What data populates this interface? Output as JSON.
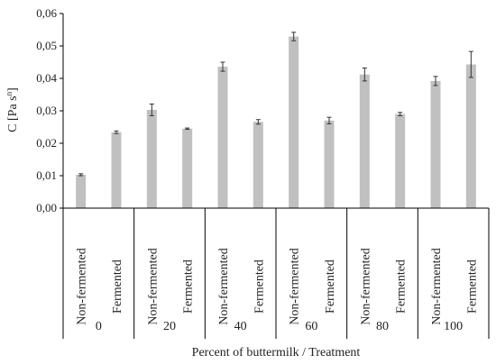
{
  "chart_data": {
    "type": "bar",
    "title": "",
    "ylabel_main": "C [Pa s",
    "ylabel_sup": "n",
    "ylabel_end": "]",
    "xlabel": "Percent of buttermilk / Treatment",
    "ylim": [
      0,
      0.06
    ],
    "yticks": [
      "0,00",
      "0,01",
      "0,02",
      "0,03",
      "0,04",
      "0,05",
      "0,06"
    ],
    "grid": false,
    "bar_color": "#c0c0c0",
    "groups": [
      {
        "label": "0",
        "bars": [
          {
            "treatment": "Non-fermented",
            "value": 0.0103,
            "err": 0.0003
          },
          {
            "treatment": "Fermented",
            "value": 0.0234,
            "err": 0.0004
          }
        ]
      },
      {
        "label": "20",
        "bars": [
          {
            "treatment": "Non-fermented",
            "value": 0.0303,
            "err": 0.0018
          },
          {
            "treatment": "Fermented",
            "value": 0.0245,
            "err": 0.0002
          }
        ]
      },
      {
        "label": "40",
        "bars": [
          {
            "treatment": "Non-fermented",
            "value": 0.0436,
            "err": 0.0014
          },
          {
            "treatment": "Fermented",
            "value": 0.0266,
            "err": 0.0007
          }
        ]
      },
      {
        "label": "60",
        "bars": [
          {
            "treatment": "Non-fermented",
            "value": 0.0529,
            "err": 0.0013
          },
          {
            "treatment": "Fermented",
            "value": 0.027,
            "err": 0.001
          }
        ]
      },
      {
        "label": "80",
        "bars": [
          {
            "treatment": "Non-fermented",
            "value": 0.0412,
            "err": 0.002
          },
          {
            "treatment": "Fermented",
            "value": 0.029,
            "err": 0.0005
          }
        ]
      },
      {
        "label": "100",
        "bars": [
          {
            "treatment": "Non-fermented",
            "value": 0.0392,
            "err": 0.0014
          },
          {
            "treatment": "Fermented",
            "value": 0.0443,
            "err": 0.004
          }
        ]
      }
    ]
  }
}
